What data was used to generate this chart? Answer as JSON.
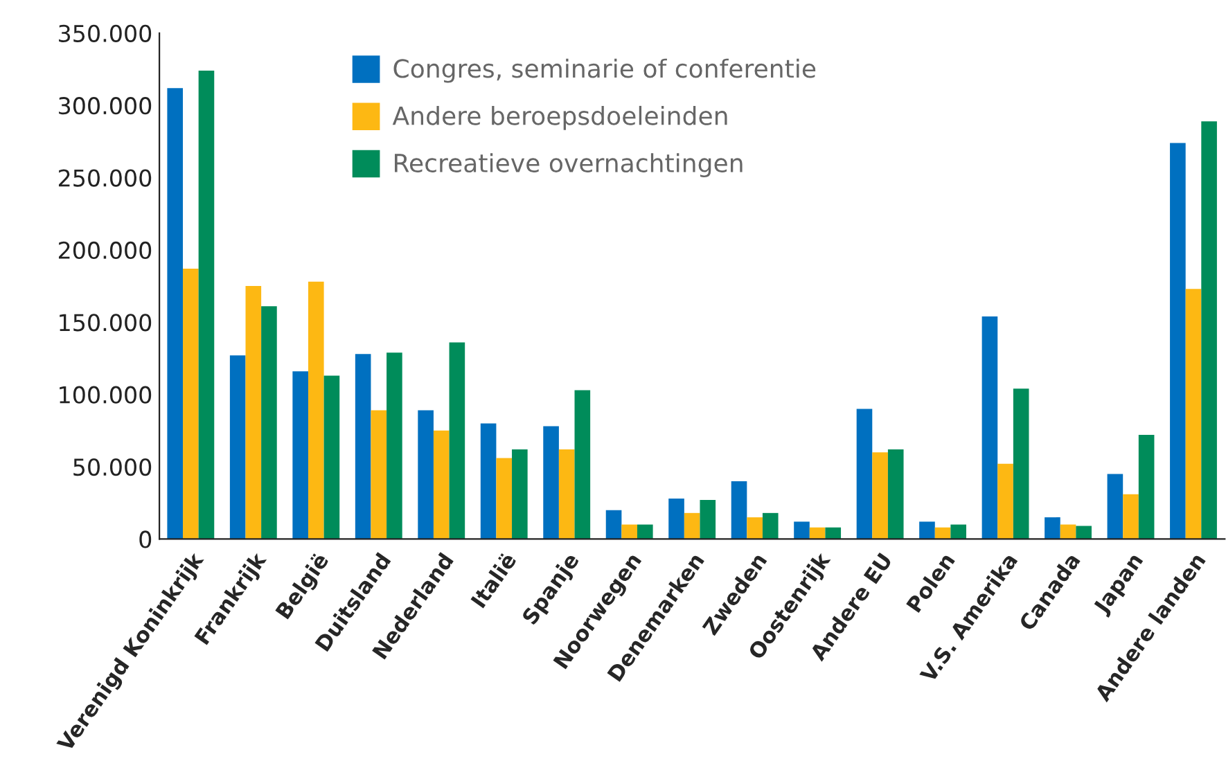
{
  "chart_data": {
    "type": "bar",
    "categories": [
      "Verenigd Koninkrijk",
      "Frankrijk",
      "België",
      "Duitsland",
      "Nederland",
      "Italië",
      "Spanje",
      "Noorwegen",
      "Denemarken",
      "Zweden",
      "Oostenrijk",
      "Andere EU",
      "Polen",
      "V.S. Amerika",
      "Canada",
      "Japan",
      "Andere landen"
    ],
    "series": [
      {
        "name": "Congres, seminarie of conferentie",
        "color": "#0070c0",
        "values": [
          312000,
          127000,
          116000,
          128000,
          89000,
          80000,
          78000,
          20000,
          28000,
          40000,
          12000,
          90000,
          12000,
          154000,
          15000,
          45000,
          274000
        ]
      },
      {
        "name": "Andere beroepsdoeleinden",
        "color": "#fdb813",
        "values": [
          187000,
          175000,
          178000,
          89000,
          75000,
          56000,
          62000,
          10000,
          18000,
          15000,
          8000,
          60000,
          8000,
          52000,
          10000,
          31000,
          173000
        ]
      },
      {
        "name": "Recreatieve overnachtingen",
        "color": "#008c5a",
        "values": [
          324000,
          161000,
          113000,
          129000,
          136000,
          62000,
          103000,
          10000,
          27000,
          18000,
          8000,
          62000,
          10000,
          104000,
          9000,
          72000,
          289000
        ]
      }
    ],
    "ylim": [
      0,
      350000
    ],
    "yticks": [
      {
        "value": 0,
        "label": "0"
      },
      {
        "value": 50000,
        "label": "50.000"
      },
      {
        "value": 100000,
        "label": "100.000"
      },
      {
        "value": 150000,
        "label": "150.000"
      },
      {
        "value": 200000,
        "label": "200.000"
      },
      {
        "value": 250000,
        "label": "250.000"
      },
      {
        "value": 300000,
        "label": "300.000"
      },
      {
        "value": 350000,
        "label": "350.000"
      }
    ],
    "grid": false,
    "legend": "top"
  }
}
